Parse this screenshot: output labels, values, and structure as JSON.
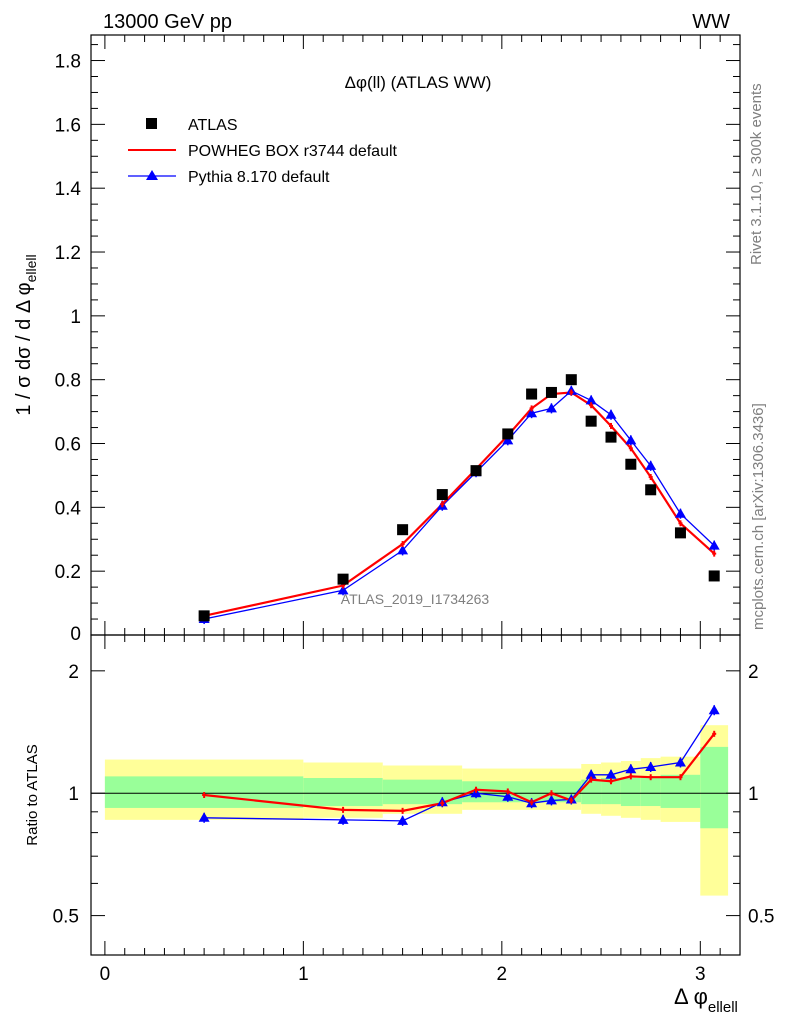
{
  "header": {
    "left": "13000 GeV pp",
    "right": "WW"
  },
  "side_texts": {
    "rivet": "Rivet 3.1.10, ≥ 300k events",
    "mcplots": "mcplots.cern.ch [arXiv:1306.3436]"
  },
  "colors": {
    "atlas": "#000000",
    "powheg": "#ff0000",
    "pythia": "#0000ff",
    "band_outer": "#ffff99",
    "band_inner": "#99ff99"
  },
  "chart_data": [
    {
      "type": "scatter",
      "panel": "main",
      "title": "Δφ(ll) (ATLAS WW)",
      "ylabel": "1 / σ  dσ / d Δ φ_ellell",
      "analysis_label": "ATLAS_2019_I1734263",
      "xlim": [
        -0.07,
        3.2
      ],
      "ylim": [
        0,
        1.88
      ],
      "grid": false,
      "legend_position": "top-left",
      "x_ticks": [
        "0",
        "1",
        "2",
        "3"
      ],
      "y_ticks": [
        "0.2",
        "0.4",
        "0.6",
        "0.8",
        "1",
        "1.2",
        "1.4",
        "1.6",
        "1.8"
      ],
      "series": [
        {
          "name": "ATLAS",
          "marker": "square",
          "x": [
            0.5,
            1.2,
            1.5,
            1.7,
            1.87,
            2.03,
            2.15,
            2.25,
            2.35,
            2.45,
            2.55,
            2.65,
            2.75,
            2.9,
            3.07
          ],
          "y": [
            0.06,
            0.175,
            0.33,
            0.44,
            0.515,
            0.63,
            0.755,
            0.76,
            0.8,
            0.67,
            0.62,
            0.535,
            0.455,
            0.32,
            0.185
          ]
        },
        {
          "name": "POWHEG BOX r3744 default",
          "marker": "line",
          "x": [
            0.5,
            1.2,
            1.5,
            1.7,
            1.87,
            2.03,
            2.15,
            2.25,
            2.35,
            2.45,
            2.55,
            2.65,
            2.75,
            2.9,
            3.07
          ],
          "y": [
            0.06,
            0.155,
            0.285,
            0.41,
            0.52,
            0.625,
            0.71,
            0.755,
            0.76,
            0.72,
            0.655,
            0.585,
            0.495,
            0.35,
            0.255
          ]
        },
        {
          "name": "Pythia 8.170 default",
          "marker": "triangle",
          "x": [
            0.5,
            1.2,
            1.5,
            1.7,
            1.87,
            2.03,
            2.15,
            2.25,
            2.35,
            2.45,
            2.55,
            2.65,
            2.75,
            2.9,
            3.07
          ],
          "y": [
            0.05,
            0.14,
            0.265,
            0.405,
            0.51,
            0.61,
            0.695,
            0.71,
            0.765,
            0.735,
            0.69,
            0.61,
            0.53,
            0.38,
            0.28
          ]
        }
      ]
    },
    {
      "type": "line",
      "panel": "ratio",
      "ylabel": "Ratio to ATLAS",
      "xlabel": "Δ φ_ellell",
      "scale": "log",
      "ylim": [
        0.4,
        2.45
      ],
      "x_ticks": [
        "0",
        "1",
        "2",
        "3"
      ],
      "y_ticks": [
        "0.5",
        "1",
        "2"
      ],
      "reference_line": 1,
      "uncertainty_bands": [
        {
          "x_from": 0.0,
          "x_to": 1.0,
          "outer": [
            0.86,
            1.21
          ],
          "inner": [
            0.92,
            1.1
          ]
        },
        {
          "x_from": 1.0,
          "x_to": 1.4,
          "outer": [
            0.87,
            1.19
          ],
          "inner": [
            0.93,
            1.09
          ]
        },
        {
          "x_from": 1.4,
          "x_to": 1.8,
          "outer": [
            0.89,
            1.17
          ],
          "inner": [
            0.94,
            1.08
          ]
        },
        {
          "x_from": 1.8,
          "x_to": 2.4,
          "outer": [
            0.91,
            1.15
          ],
          "inner": [
            0.95,
            1.07
          ]
        },
        {
          "x_from": 2.4,
          "x_to": 2.5,
          "outer": [
            0.89,
            1.18
          ],
          "inner": [
            0.94,
            1.08
          ]
        },
        {
          "x_from": 2.5,
          "x_to": 2.6,
          "outer": [
            0.88,
            1.19
          ],
          "inner": [
            0.94,
            1.09
          ]
        },
        {
          "x_from": 2.6,
          "x_to": 2.7,
          "outer": [
            0.87,
            1.2
          ],
          "inner": [
            0.93,
            1.09
          ]
        },
        {
          "x_from": 2.7,
          "x_to": 2.8,
          "outer": [
            0.86,
            1.22
          ],
          "inner": [
            0.93,
            1.1
          ]
        },
        {
          "x_from": 2.8,
          "x_to": 3.0,
          "outer": [
            0.85,
            1.23
          ],
          "inner": [
            0.92,
            1.11
          ]
        },
        {
          "x_from": 3.0,
          "x_to": 3.14,
          "outer": [
            0.56,
            1.47
          ],
          "inner": [
            0.82,
            1.3
          ]
        }
      ],
      "series": [
        {
          "name": "POWHEG BOX r3744 default",
          "x": [
            0.5,
            1.2,
            1.5,
            1.7,
            1.87,
            2.03,
            2.15,
            2.25,
            2.35,
            2.45,
            2.55,
            2.65,
            2.75,
            2.9,
            3.07
          ],
          "y": [
            0.99,
            0.91,
            0.905,
            0.945,
            1.02,
            1.01,
            0.95,
            1.0,
            0.96,
            1.08,
            1.07,
            1.1,
            1.095,
            1.095,
            1.4
          ]
        },
        {
          "name": "Pythia 8.170 default",
          "x": [
            0.5,
            1.2,
            1.5,
            1.7,
            1.87,
            2.03,
            2.15,
            2.25,
            2.35,
            2.45,
            2.55,
            2.65,
            2.75,
            2.9,
            3.07
          ],
          "y": [
            0.87,
            0.86,
            0.855,
            0.95,
            1.0,
            0.98,
            0.945,
            0.96,
            0.965,
            1.11,
            1.11,
            1.145,
            1.16,
            1.19,
            1.6
          ]
        }
      ]
    }
  ]
}
